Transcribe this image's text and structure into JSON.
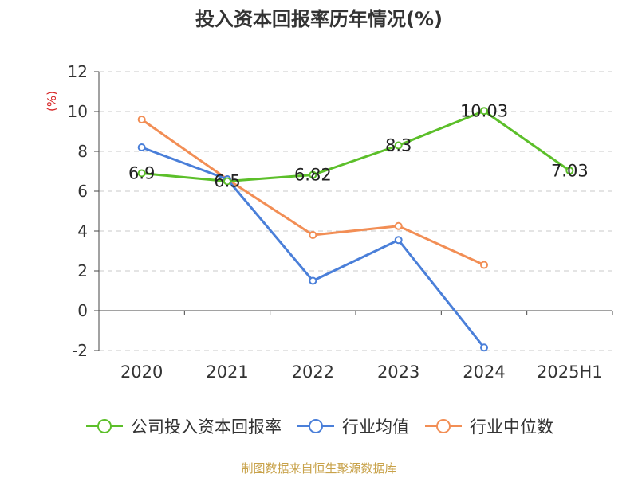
{
  "chart_data": {
    "type": "line",
    "title": "投入资本回报率历年情况(%)",
    "ylabel": "(%)",
    "categories": [
      "2020",
      "2021",
      "2022",
      "2023",
      "2024",
      "2025H1"
    ],
    "ylim": [
      -2,
      12
    ],
    "yticks": [
      -2,
      0,
      2,
      4,
      6,
      8,
      10,
      12
    ],
    "grid": true,
    "legend": "bottom",
    "series": [
      {
        "name": "公司投入资本回报率",
        "color": "#5cbf2a",
        "values": [
          6.9,
          6.5,
          6.82,
          8.3,
          10.03,
          7.03
        ],
        "labels": [
          "6.9",
          "6.5",
          "6.82",
          "8.3",
          "10.03",
          "7.03"
        ]
      },
      {
        "name": "行业均值",
        "color": "#4a7fd9",
        "values": [
          8.2,
          6.6,
          1.5,
          3.55,
          -1.85,
          null
        ]
      },
      {
        "name": "行业中位数",
        "color": "#f28e55",
        "values": [
          9.6,
          6.6,
          3.8,
          4.25,
          2.3,
          null
        ]
      }
    ]
  },
  "source": "制图数据来自恒生聚源数据库"
}
